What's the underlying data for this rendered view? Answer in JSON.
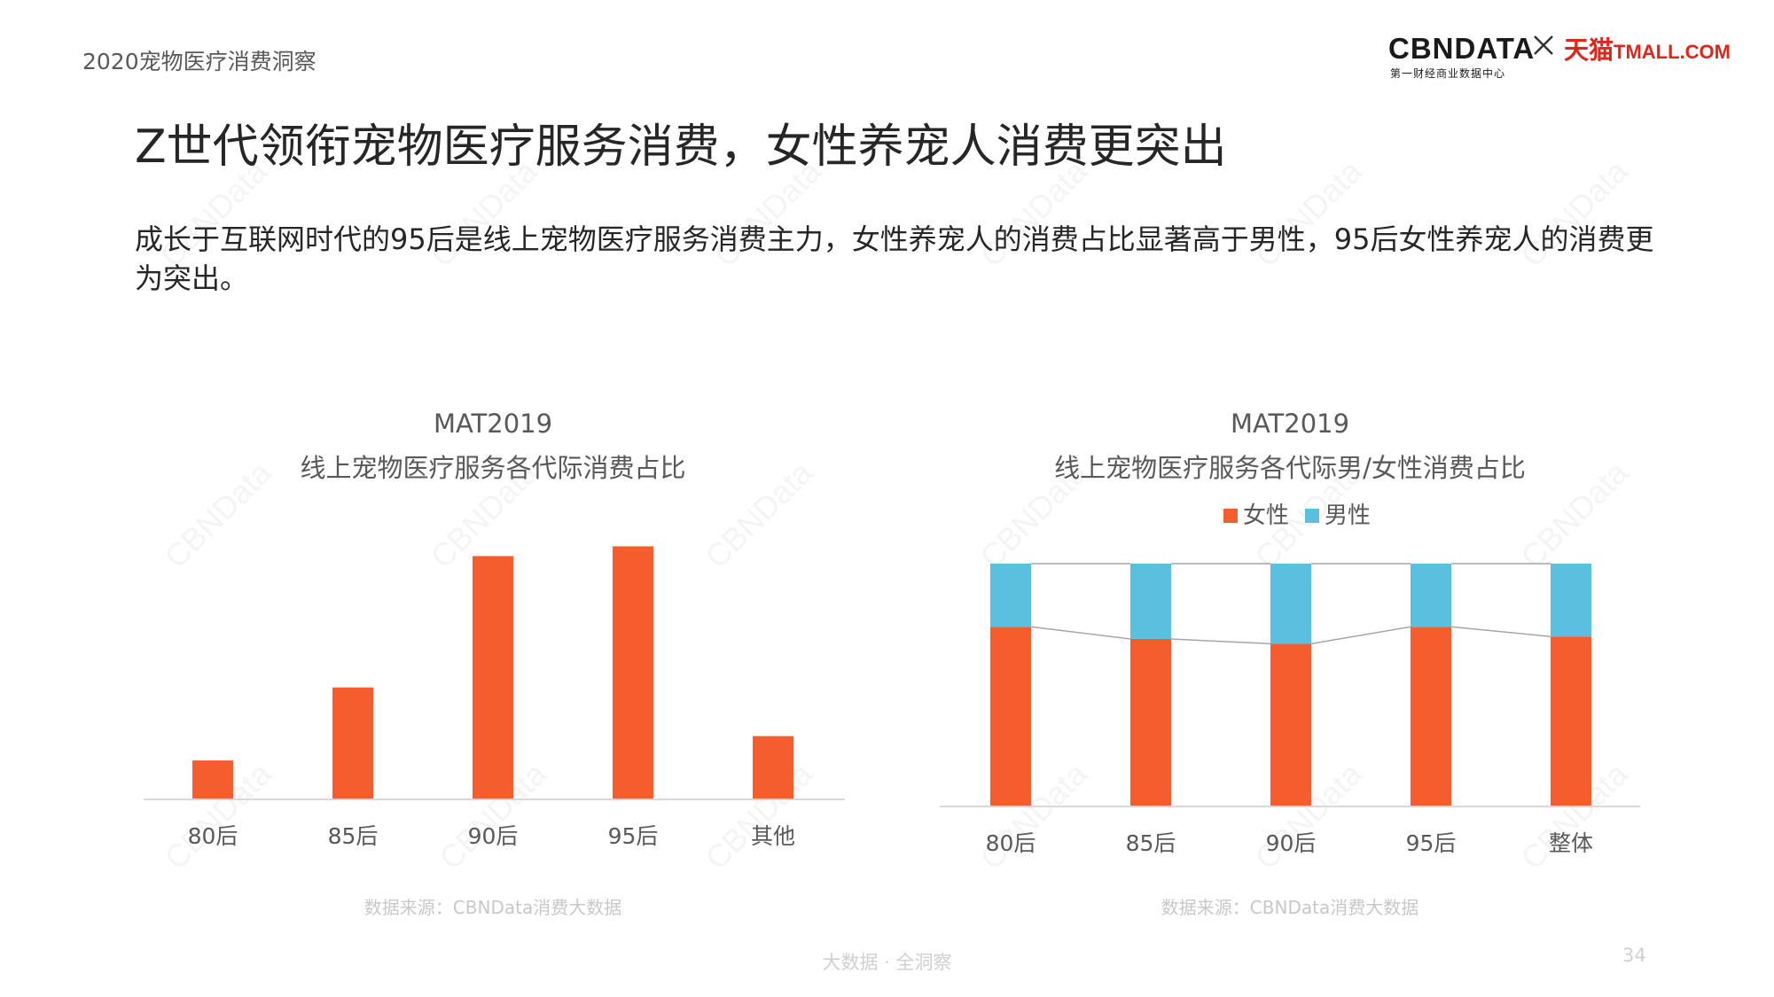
{
  "header": {
    "report_title": "2020宠物医疗消费洞察",
    "logo_cbn": "CBNDATA",
    "logo_cbn_sub": "第一财经商业数据中心",
    "logo_tmall_cn": "天猫",
    "logo_tmall_en": "TMALL.COM"
  },
  "headline": "Z世代领衔宠物医疗服务消费，女性养宠人消费更突出",
  "summary": "成长于互联网时代的95后是线上宠物医疗服务消费主力，女性养宠人的消费占比显著高于男性，95后女性养宠人的消费更为突出。",
  "watermark_text": "CBNData",
  "chart_data": [
    {
      "type": "bar",
      "title": "MAT2019",
      "subtitle": "线上宠物医疗服务各代际消费占比",
      "categories": [
        "80后",
        "85后",
        "90后",
        "95后",
        "其他"
      ],
      "values": [
        8,
        23,
        50,
        52,
        13
      ],
      "ylim": [
        0,
        55
      ],
      "color": "#f55d2f",
      "grid": false,
      "source": "数据来源：CBNData消费大数据"
    },
    {
      "type": "bar",
      "stacked": true,
      "normalized": true,
      "title": "MAT2019",
      "subtitle": "线上宠物医疗服务各代际男/女性消费占比",
      "categories": [
        "80后",
        "85后",
        "90后",
        "95后",
        "整体"
      ],
      "series": [
        {
          "name": "女性",
          "color": "#f55d2f",
          "values": [
            74,
            69,
            67,
            74,
            70
          ]
        },
        {
          "name": "男性",
          "color": "#5bc0e0",
          "values": [
            26,
            31,
            33,
            26,
            30
          ]
        }
      ],
      "ylim": [
        0,
        100
      ],
      "legend": "top",
      "grid": false,
      "series_lines": true,
      "source": "数据来源：CBNData消费大数据"
    }
  ],
  "footer": {
    "text": "大数据 · 全洞察",
    "page_number": "34"
  }
}
